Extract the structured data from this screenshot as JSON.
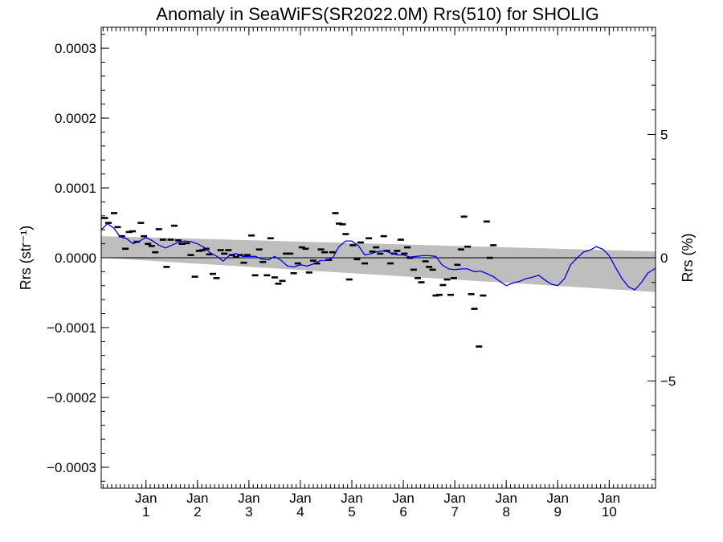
{
  "chart_data": {
    "type": "scatter",
    "title": "Anomaly in SeaWiFS(SR2022.0M) Rrs(510) for SHOLIG",
    "ylabel": "Rrs (str⁻¹)",
    "y2label": "Rrs (%)",
    "ylim": [
      -0.00033,
      0.00033
    ],
    "y2lim": [
      -9.35,
      9.35
    ],
    "xlim": [
      -0.87,
      9.9
    ],
    "y_ticks": [
      "0.0003",
      "0.0002",
      "0.0001",
      "0.0000",
      "−0.0001",
      "−0.0002",
      "−0.0003"
    ],
    "y_tick_values": [
      0.0003,
      0.0002,
      0.0001,
      0.0,
      -0.0001,
      -0.0002,
      -0.0003
    ],
    "y2_ticks": [
      "5",
      "0",
      "−5"
    ],
    "y2_tick_values": [
      5,
      0,
      -5
    ],
    "x_ticks": [
      {
        "month": "Jan",
        "year": "1",
        "x": 0
      },
      {
        "month": "Jan",
        "year": "2",
        "x": 1
      },
      {
        "month": "Jan",
        "year": "3",
        "x": 2
      },
      {
        "month": "Jan",
        "year": "4",
        "x": 3
      },
      {
        "month": "Jan",
        "year": "5",
        "x": 4
      },
      {
        "month": "Jan",
        "year": "6",
        "x": 5
      },
      {
        "month": "Jan",
        "year": "7",
        "x": 6
      },
      {
        "month": "Jan",
        "year": "8",
        "x": 7
      },
      {
        "month": "Jan",
        "year": "9",
        "x": 8
      },
      {
        "month": "Jan",
        "year": "10",
        "x": 9
      }
    ],
    "band": {
      "x": [
        -0.87,
        9.9
      ],
      "upper": [
        3.1e-05,
        9e-06
      ],
      "lower": [
        0.0,
        -4.9e-05
      ],
      "color": "#bebebe"
    },
    "zero_line": 0,
    "points": [
      [
        -0.8,
        5.7e-05
      ],
      [
        -0.73,
        5e-05
      ],
      [
        -0.62,
        6.4e-05
      ],
      [
        -0.55,
        4.4e-05
      ],
      [
        -0.47,
        3.1e-05
      ],
      [
        -0.4,
        1.3e-05
      ],
      [
        -0.33,
        3.7e-05
      ],
      [
        -0.26,
        3.8e-05
      ],
      [
        -0.18,
        2.3e-05
      ],
      [
        -0.1,
        5e-05
      ],
      [
        -0.04,
        3.1e-05
      ],
      [
        0.04,
        2e-05
      ],
      [
        0.11,
        1.7e-05
      ],
      [
        0.18,
        8e-06
      ],
      [
        0.25,
        4.1e-05
      ],
      [
        0.33,
        2.6e-05
      ],
      [
        0.4,
        -1.3e-05
      ],
      [
        0.48,
        2.6e-05
      ],
      [
        0.55,
        4.6e-05
      ],
      [
        0.63,
        2.5e-05
      ],
      [
        0.7,
        2e-05
      ],
      [
        0.79,
        2.1e-05
      ],
      [
        0.87,
        4e-06
      ],
      [
        0.95,
        -2.7e-05
      ],
      [
        1.03,
        1e-05
      ],
      [
        1.1,
        1.1e-05
      ],
      [
        1.17,
        1.3e-05
      ],
      [
        1.23,
        5e-06
      ],
      [
        1.3,
        -2.3e-05
      ],
      [
        1.37,
        -2.9e-05
      ],
      [
        1.45,
        1.1e-05
      ],
      [
        1.52,
        6e-06
      ],
      [
        1.6,
        1.1e-05
      ],
      [
        1.67,
        4e-06
      ],
      [
        1.75,
        1e-06
      ],
      [
        1.83,
        4e-06
      ],
      [
        1.9,
        -7e-06
      ],
      [
        1.97,
        4e-06
      ],
      [
        2.05,
        3.2e-05
      ],
      [
        2.12,
        -2.5e-05
      ],
      [
        2.2,
        1.2e-05
      ],
      [
        2.27,
        -6e-06
      ],
      [
        2.35,
        -2.5e-05
      ],
      [
        2.42,
        2.8e-05
      ],
      [
        2.5,
        -2.8e-05
      ],
      [
        2.57,
        -3.7e-05
      ],
      [
        2.65,
        -3.3e-05
      ],
      [
        2.72,
        6e-06
      ],
      [
        2.8,
        6e-06
      ],
      [
        2.87,
        -2.2e-05
      ],
      [
        2.95,
        -8e-06
      ],
      [
        3.03,
        1.5e-05
      ],
      [
        3.1,
        1.3e-05
      ],
      [
        3.17,
        -2.1e-05
      ],
      [
        3.25,
        -4e-06
      ],
      [
        3.32,
        -8e-06
      ],
      [
        3.4,
        1.2e-05
      ],
      [
        3.47,
        8e-06
      ],
      [
        3.55,
        -3e-06
      ],
      [
        3.62,
        8e-06
      ],
      [
        3.68,
        6.4e-05
      ],
      [
        3.75,
        4.9e-05
      ],
      [
        3.82,
        4.8e-05
      ],
      [
        3.88,
        3.4e-05
      ],
      [
        3.95,
        -3.1e-05
      ],
      [
        4.02,
        1.8e-05
      ],
      [
        4.1,
        -2e-06
      ],
      [
        4.17,
        2.2e-05
      ],
      [
        4.25,
        -8e-06
      ],
      [
        4.33,
        2.8e-05
      ],
      [
        4.4,
        9e-06
      ],
      [
        4.47,
        1.5e-05
      ],
      [
        4.55,
        6e-06
      ],
      [
        4.62,
        3.1e-05
      ],
      [
        4.68,
        1e-05
      ],
      [
        4.75,
        -8e-06
      ],
      [
        4.82,
        6e-06
      ],
      [
        4.88,
        1e-05
      ],
      [
        4.95,
        2.6e-05
      ],
      [
        5.02,
        6e-06
      ],
      [
        5.08,
        1.5e-05
      ],
      [
        5.13,
        0.0
      ],
      [
        5.2,
        -1.7e-05
      ],
      [
        5.28,
        -2.9e-05
      ],
      [
        5.35,
        -3.5e-05
      ],
      [
        5.43,
        -5e-06
      ],
      [
        5.5,
        -1.3e-05
      ],
      [
        5.57,
        -1.7e-05
      ],
      [
        5.63,
        -5.4e-05
      ],
      [
        5.7,
        -5.3e-05
      ],
      [
        5.77,
        -3.9e-05
      ],
      [
        5.85,
        -3.1e-05
      ],
      [
        5.92,
        -5.3e-05
      ],
      [
        5.98,
        -2.9e-05
      ],
      [
        6.05,
        -1e-05
      ],
      [
        6.12,
        1.2e-05
      ],
      [
        6.18,
        5.9e-05
      ],
      [
        6.25,
        1.6e-05
      ],
      [
        6.32,
        -5.2e-05
      ],
      [
        6.38,
        -7.3e-05
      ],
      [
        6.47,
        -0.000127
      ],
      [
        6.55,
        -5.4e-05
      ],
      [
        6.62,
        5.2e-05
      ],
      [
        6.68,
        0.0
      ],
      [
        6.75,
        1.8e-05
      ]
    ],
    "points_color": "#000000",
    "series": [
      {
        "color": "#0000ee",
        "x": [
          -0.87,
          -0.75,
          -0.62,
          -0.5,
          -0.37,
          -0.25,
          -0.12,
          0.0,
          0.13,
          0.25,
          0.38,
          0.5,
          0.63,
          0.75,
          0.88,
          1.0,
          1.13,
          1.25,
          1.38,
          1.5,
          1.63,
          1.75,
          1.88,
          2.0,
          2.13,
          2.25,
          2.38,
          2.5,
          2.63,
          2.75,
          2.88,
          3.0,
          3.13,
          3.25,
          3.38,
          3.5,
          3.63,
          3.75,
          3.88,
          4.0,
          4.13,
          4.25,
          4.38,
          4.5,
          4.63,
          4.75,
          4.88,
          5.0,
          5.13,
          5.25,
          5.38,
          5.5,
          5.63,
          5.75,
          5.88,
          6.0,
          6.13,
          6.25,
          6.38,
          6.5,
          6.63,
          6.75,
          6.88,
          7.0,
          7.13,
          7.25,
          7.38,
          7.5,
          7.63,
          7.75,
          7.88,
          8.0,
          8.13,
          8.25,
          8.38,
          8.5,
          8.63,
          8.75,
          8.88,
          9.0,
          9.13,
          9.25,
          9.38,
          9.5,
          9.63,
          9.75,
          9.9
        ],
        "y": [
          4e-05,
          4.9e-05,
          4.2e-05,
          3e-05,
          2.7e-05,
          2e-05,
          2.4e-05,
          2.9e-05,
          2.4e-05,
          1.8e-05,
          1.4e-05,
          1.8e-05,
          2.2e-05,
          2.4e-05,
          2.3e-05,
          2e-05,
          1.5e-05,
          7e-06,
          2e-06,
          -5e-06,
          4e-06,
          6e-06,
          2e-06,
          2e-06,
          2e-06,
          -2e-06,
          -3e-06,
          2e-06,
          -4e-06,
          -1.2e-05,
          -1.3e-05,
          -1e-05,
          -1.2e-05,
          -9e-06,
          -4e-06,
          -4e-06,
          0.0,
          1.6e-05,
          2.4e-05,
          2.4e-05,
          1.7e-05,
          4e-06,
          6e-06,
          9e-06,
          1e-05,
          7e-06,
          4e-06,
          4e-06,
          1e-06,
          2e-06,
          3e-06,
          3e-06,
          2e-06,
          -1e-05,
          -1.6e-05,
          -1.7e-05,
          -1.6e-05,
          -1.6e-05,
          -2e-05,
          -1.9e-05,
          -2.3e-05,
          -2.7e-05,
          -3.4e-05,
          -4e-05,
          -3.6e-05,
          -3.4e-05,
          -3e-05,
          -2.8e-05,
          -2.5e-05,
          -3.2e-05,
          -3.8e-05,
          -4e-05,
          -3e-05,
          -1e-05,
          0.0,
          8e-06,
          1.1e-05,
          1.6e-05,
          1.2e-05,
          3e-06,
          -1.5e-05,
          -3e-05,
          -4.2e-05,
          -4.6e-05,
          -3.5e-05,
          -2.2e-05,
          -1.5e-05
        ]
      }
    ]
  }
}
